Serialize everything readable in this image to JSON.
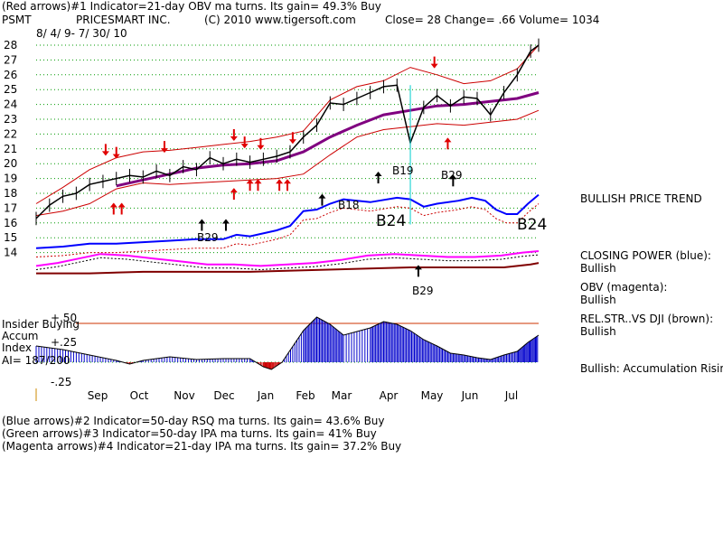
{
  "header": {
    "line1": "(Red arrows)#1 Indicator=21-day OBV ma turns. Its gain= 49.3% Buy",
    "symbol": "PSMT",
    "company": "PRICESMART INC.",
    "copyright": "(C) 2010 www.tigersoft.com",
    "quote": "Close=  28  Change= .66 Volume= 1034",
    "date_range": "8/ 4/ 9- 7/ 30/ 10"
  },
  "footer": {
    "lines": [
      "(Blue arrows)#2 Indicator=50-day RSQ ma turns. Its gain= 43.6% Buy",
      "(Green arrows)#3 Indicator=50-day IPA ma turns. Its gain= 41% Buy",
      "(Magenta arrows)#4 Indicator=21-day IPA ma turns. Its gain= 37.2% Buy"
    ]
  },
  "side_labels": {
    "trend": "BULLISH PRICE TREND",
    "cp_title": "CLOSING POWER (blue):",
    "cp_value": "Bullish",
    "obv_title": "OBV (magenta):",
    "obv_value": "Bullish",
    "rel_title": "REL.STR..VS DJI (brown):",
    "rel_value": "Bullish",
    "accum": "Bullish: Accumulation Rising"
  },
  "insider": {
    "line1": "Insider Buying",
    "line2": "Accum",
    "line3": "Index",
    "line4": "AI= 187/200",
    "plus50": "+.50",
    "plus25": "+.25",
    "minus25": "-.25"
  },
  "annotations": {
    "b18": "B18",
    "b19": "B19",
    "b29a": "B29",
    "b29b": "B29",
    "b29c": "B29",
    "b24a": "B24",
    "b24b": "B24"
  },
  "colors": {
    "price": "#000000",
    "band": "#cc0000",
    "ma50": "#800080",
    "cp": "#0000ff",
    "obv": "#ff00ff",
    "rel": "#800000",
    "accum": "#0000cc",
    "grid": "#009900",
    "arrow_red": "#e00000",
    "divider": "#cc3300",
    "vline": "#00cccc"
  },
  "chart_data": {
    "type": "line",
    "title": "PSMT PRICESMART INC.",
    "yticks": [
      14,
      15,
      16,
      17,
      18,
      19,
      20,
      21,
      22,
      23,
      24,
      25,
      26,
      27,
      28
    ],
    "months": [
      "Sep",
      "Oct",
      "Nov",
      "Dec",
      "Jan",
      "Feb",
      "Mar",
      "Apr",
      "May",
      "Jun",
      "Jul"
    ],
    "price_close": [
      [
        0,
        16.3
      ],
      [
        5,
        17.2
      ],
      [
        10,
        17.8
      ],
      [
        15,
        18.0
      ],
      [
        20,
        18.6
      ],
      [
        25,
        18.8
      ],
      [
        30,
        19.0
      ],
      [
        35,
        19.2
      ],
      [
        40,
        19.1
      ],
      [
        45,
        19.5
      ],
      [
        50,
        19.2
      ],
      [
        55,
        19.8
      ],
      [
        60,
        19.6
      ],
      [
        65,
        20.4
      ],
      [
        70,
        20.0
      ],
      [
        75,
        20.3
      ],
      [
        80,
        20.1
      ],
      [
        85,
        20.3
      ],
      [
        90,
        20.5
      ],
      [
        95,
        20.8
      ],
      [
        100,
        21.8
      ],
      [
        105,
        22.6
      ],
      [
        110,
        24.1
      ],
      [
        115,
        24.0
      ],
      [
        120,
        24.4
      ],
      [
        125,
        24.8
      ],
      [
        130,
        25.2
      ],
      [
        135,
        25.3
      ],
      [
        140,
        21.4
      ],
      [
        145,
        23.8
      ],
      [
        150,
        24.6
      ],
      [
        155,
        23.9
      ],
      [
        160,
        24.5
      ],
      [
        165,
        24.4
      ],
      [
        170,
        23.3
      ],
      [
        175,
        24.8
      ],
      [
        180,
        26.0
      ],
      [
        185,
        27.6
      ],
      [
        188,
        28.0
      ]
    ],
    "upper_band": [
      [
        0,
        17.3
      ],
      [
        10,
        18.4
      ],
      [
        20,
        19.6
      ],
      [
        30,
        20.4
      ],
      [
        40,
        20.8
      ],
      [
        50,
        20.9
      ],
      [
        60,
        21.1
      ],
      [
        70,
        21.3
      ],
      [
        80,
        21.5
      ],
      [
        90,
        21.8
      ],
      [
        100,
        22.2
      ],
      [
        110,
        24.3
      ],
      [
        120,
        25.2
      ],
      [
        130,
        25.6
      ],
      [
        140,
        26.5
      ],
      [
        150,
        26.0
      ],
      [
        160,
        25.4
      ],
      [
        170,
        25.6
      ],
      [
        180,
        26.4
      ],
      [
        188,
        28.0
      ]
    ],
    "lower_band": [
      [
        0,
        16.5
      ],
      [
        10,
        16.8
      ],
      [
        20,
        17.3
      ],
      [
        30,
        18.3
      ],
      [
        40,
        18.7
      ],
      [
        50,
        18.6
      ],
      [
        60,
        18.7
      ],
      [
        70,
        18.8
      ],
      [
        80,
        18.9
      ],
      [
        90,
        19.0
      ],
      [
        100,
        19.3
      ],
      [
        110,
        20.6
      ],
      [
        120,
        21.8
      ],
      [
        130,
        22.3
      ],
      [
        140,
        22.5
      ],
      [
        150,
        22.7
      ],
      [
        160,
        22.6
      ],
      [
        170,
        22.8
      ],
      [
        180,
        23.0
      ],
      [
        188,
        23.6
      ]
    ],
    "ma50": [
      [
        30,
        18.5
      ],
      [
        40,
        18.9
      ],
      [
        50,
        19.3
      ],
      [
        60,
        19.7
      ],
      [
        70,
        19.9
      ],
      [
        80,
        20.0
      ],
      [
        90,
        20.2
      ],
      [
        100,
        20.8
      ],
      [
        110,
        21.8
      ],
      [
        120,
        22.6
      ],
      [
        130,
        23.3
      ],
      [
        140,
        23.6
      ],
      [
        150,
        23.9
      ],
      [
        160,
        24.0
      ],
      [
        170,
        24.2
      ],
      [
        180,
        24.4
      ],
      [
        188,
        24.8
      ]
    ],
    "closing_power": [
      [
        0,
        14.3
      ],
      [
        10,
        14.4
      ],
      [
        20,
        14.6
      ],
      [
        30,
        14.6
      ],
      [
        40,
        14.7
      ],
      [
        50,
        14.8
      ],
      [
        60,
        14.9
      ],
      [
        70,
        14.9
      ],
      [
        75,
        15.2
      ],
      [
        80,
        15.1
      ],
      [
        90,
        15.5
      ],
      [
        95,
        15.8
      ],
      [
        100,
        16.8
      ],
      [
        105,
        16.9
      ],
      [
        110,
        17.3
      ],
      [
        115,
        17.6
      ],
      [
        125,
        17.4
      ],
      [
        135,
        17.7
      ],
      [
        140,
        17.6
      ],
      [
        145,
        17.1
      ],
      [
        150,
        17.3
      ],
      [
        158,
        17.5
      ],
      [
        163,
        17.7
      ],
      [
        168,
        17.5
      ],
      [
        172,
        16.9
      ],
      [
        176,
        16.6
      ],
      [
        180,
        16.6
      ],
      [
        184,
        17.3
      ],
      [
        188,
        17.9
      ]
    ],
    "obv": [
      [
        0,
        13.1
      ],
      [
        8,
        13.3
      ],
      [
        16,
        13.6
      ],
      [
        24,
        13.9
      ],
      [
        34,
        13.8
      ],
      [
        44,
        13.6
      ],
      [
        54,
        13.4
      ],
      [
        64,
        13.2
      ],
      [
        74,
        13.2
      ],
      [
        84,
        13.1
      ],
      [
        94,
        13.2
      ],
      [
        104,
        13.3
      ],
      [
        114,
        13.5
      ],
      [
        124,
        13.8
      ],
      [
        134,
        13.9
      ],
      [
        144,
        13.8
      ],
      [
        154,
        13.7
      ],
      [
        164,
        13.7
      ],
      [
        174,
        13.8
      ],
      [
        182,
        14.0
      ],
      [
        188,
        14.1
      ]
    ],
    "rel_strength": [
      [
        0,
        12.6
      ],
      [
        20,
        12.6
      ],
      [
        40,
        12.7
      ],
      [
        60,
        12.7
      ],
      [
        80,
        12.7
      ],
      [
        100,
        12.8
      ],
      [
        120,
        12.9
      ],
      [
        140,
        13.0
      ],
      [
        160,
        13.0
      ],
      [
        175,
        13.0
      ],
      [
        185,
        13.2
      ],
      [
        188,
        13.3
      ]
    ],
    "accumulation": [
      [
        0,
        0.18
      ],
      [
        10,
        0.14
      ],
      [
        20,
        0.08
      ],
      [
        30,
        0.02
      ],
      [
        35,
        -0.02
      ],
      [
        40,
        0.02
      ],
      [
        50,
        0.06
      ],
      [
        60,
        0.03
      ],
      [
        70,
        0.04
      ],
      [
        80,
        0.04
      ],
      [
        85,
        -0.05
      ],
      [
        88,
        -0.08
      ],
      [
        92,
        0.0
      ],
      [
        100,
        0.35
      ],
      [
        105,
        0.5
      ],
      [
        110,
        0.42
      ],
      [
        115,
        0.3
      ],
      [
        125,
        0.38
      ],
      [
        130,
        0.45
      ],
      [
        135,
        0.42
      ],
      [
        140,
        0.35
      ],
      [
        145,
        0.25
      ],
      [
        150,
        0.18
      ],
      [
        155,
        0.1
      ],
      [
        160,
        0.08
      ],
      [
        165,
        0.05
      ],
      [
        170,
        0.03
      ],
      [
        175,
        0.08
      ],
      [
        180,
        0.12
      ],
      [
        184,
        0.22
      ],
      [
        188,
        0.3
      ]
    ]
  }
}
